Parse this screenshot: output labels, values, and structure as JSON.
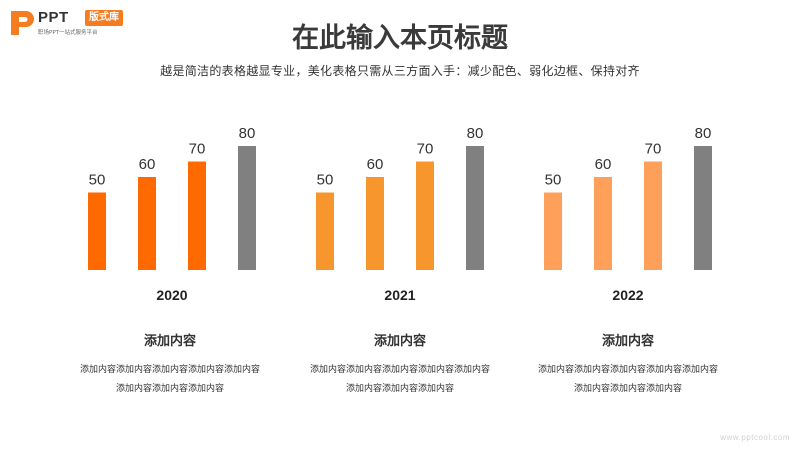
{
  "logo": {
    "brand": "PPT",
    "badge": "版式库",
    "tagline": "职场PPT一站式服务平台",
    "color": "#f57c1f"
  },
  "header": {
    "title": "在此输入本页标题",
    "subtitle": "越是简洁的表格越显专业，美化表格只需从三方面入手：减少配色、弱化边框、保持对齐"
  },
  "chart_data": {
    "type": "bar",
    "title": "",
    "xlabel": "",
    "ylabel": "",
    "ylim": [
      0,
      80
    ],
    "grid": false,
    "groups": [
      {
        "name": "2020",
        "values": [
          50,
          60,
          70,
          80
        ],
        "colors": [
          "#ff6a00",
          "#ff6a00",
          "#ff6a00",
          "#808080"
        ]
      },
      {
        "name": "2021",
        "values": [
          50,
          60,
          70,
          80
        ],
        "colors": [
          "#f7962c",
          "#f7962c",
          "#f7962c",
          "#808080"
        ]
      },
      {
        "name": "2022",
        "values": [
          50,
          60,
          70,
          80
        ],
        "colors": [
          "#ffa05a",
          "#ffa05a",
          "#ffa05a",
          "#808080"
        ]
      }
    ]
  },
  "columns": [
    {
      "title": "添加内容",
      "desc": "添加内容添加内容添加内容添加内容添加内容添加内容添加内容添加内容"
    },
    {
      "title": "添加内容",
      "desc": "添加内容添加内容添加内容添加内容添加内容添加内容添加内容添加内容"
    },
    {
      "title": "添加内容",
      "desc": "添加内容添加内容添加内容添加内容添加内容添加内容添加内容添加内容"
    }
  ],
  "watermark": "www.pptcool.com"
}
